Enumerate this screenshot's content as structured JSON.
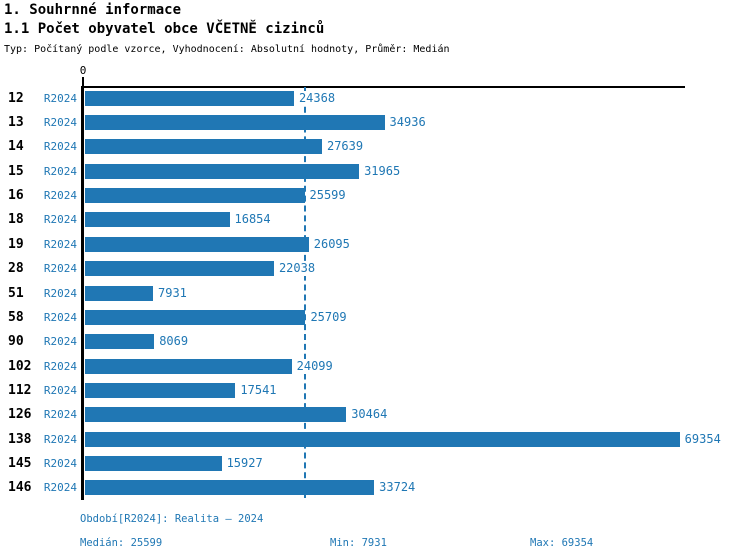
{
  "colors": {
    "bar": "#2077b4",
    "accent_text": "#1f77b4",
    "axis": "#000000",
    "background": "#ffffff"
  },
  "header": {
    "title": "1. Souhrnné informace",
    "subtitle": "1.1 Počet obyvatel obce VČETNĚ cizinců",
    "meta": "Typ: Počítaný podle vzorce, Vyhodnocení: Absolutní hodnoty, Průměr: Medián"
  },
  "axis": {
    "zero_label": "0"
  },
  "chart_data": {
    "type": "bar",
    "orientation": "horizontal",
    "title": "1.1 Počet obyvatel obce VČETNĚ cizinců",
    "categories": [
      "12",
      "13",
      "14",
      "15",
      "16",
      "18",
      "19",
      "28",
      "51",
      "58",
      "90",
      "102",
      "112",
      "126",
      "138",
      "145",
      "146"
    ],
    "series": [
      {
        "name": "R2024",
        "values": [
          24368,
          34936,
          27639,
          31965,
          25599,
          16854,
          26095,
          22038,
          7931,
          25709,
          8069,
          24099,
          17541,
          30464,
          69354,
          15927,
          33724
        ]
      }
    ],
    "xlim": [
      0,
      69354
    ],
    "median_line_value": 25599,
    "grid": false,
    "value_labels": true,
    "legend_position": "none",
    "stats": {
      "median": 25599,
      "min": 7931,
      "max": 69354
    }
  },
  "footer": {
    "period": "Období[R2024]: Realita – 2024",
    "median": "Medián: 25599",
    "min": "Min: 7931",
    "max": "Max: 69354"
  }
}
